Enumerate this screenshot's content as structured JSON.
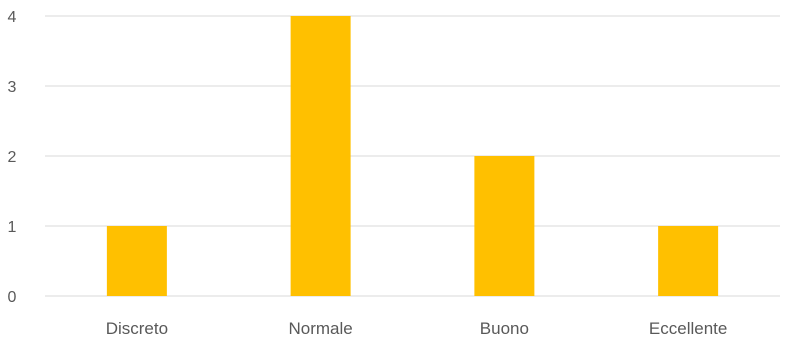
{
  "chart_data": {
    "type": "bar",
    "categories": [
      "Discreto",
      "Normale",
      "Buono",
      "Eccellente"
    ],
    "values": [
      1,
      4,
      2,
      1
    ],
    "ylim": [
      0,
      4
    ],
    "yticks": [
      0,
      1,
      2,
      3,
      4
    ],
    "grid": true,
    "legend": "none",
    "colors": {
      "bar": "#FFC000",
      "grid": "#D9D9D9",
      "text": "#595959"
    }
  }
}
